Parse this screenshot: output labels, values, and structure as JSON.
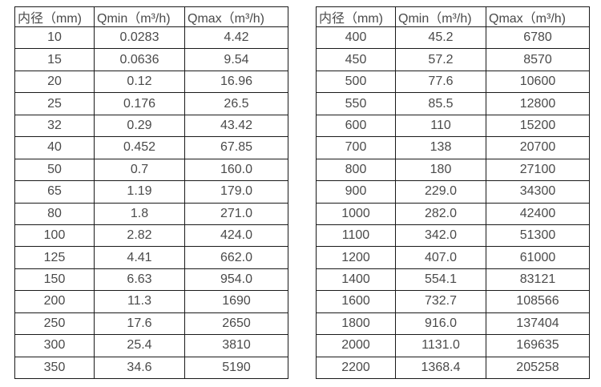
{
  "colors": {
    "background": "#ffffff",
    "border": "#1a1a1a",
    "text": "#4a4a4a"
  },
  "tables": [
    {
      "name": "flow-range-table-small-diameters",
      "headers": [
        "内径（mm)",
        "Qmin（m³/h)",
        "Qmax（m³/h)"
      ],
      "rows": [
        [
          "10",
          "0.0283",
          "4.42"
        ],
        [
          "15",
          "0.0636",
          "9.54"
        ],
        [
          "20",
          "0.12",
          "16.96"
        ],
        [
          "25",
          "0.176",
          "26.5"
        ],
        [
          "32",
          "0.29",
          "43.42"
        ],
        [
          "40",
          "0.452",
          "67.85"
        ],
        [
          "50",
          "0.7",
          "160.0"
        ],
        [
          "65",
          "1.19",
          "179.0"
        ],
        [
          "80",
          "1.8",
          "271.0"
        ],
        [
          "100",
          "2.82",
          "424.0"
        ],
        [
          "125",
          "4.41",
          "662.0"
        ],
        [
          "150",
          "6.63",
          "954.0"
        ],
        [
          "200",
          "11.3",
          "1690"
        ],
        [
          "250",
          "17.6",
          "2650"
        ],
        [
          "300",
          "25.4",
          "3810"
        ],
        [
          "350",
          "34.6",
          "5190"
        ]
      ]
    },
    {
      "name": "flow-range-table-large-diameters",
      "headers": [
        "内径（mm)",
        "Qmin（m³/h)",
        "Qmax（m³/h)"
      ],
      "rows": [
        [
          "400",
          "45.2",
          "6780"
        ],
        [
          "450",
          "57.2",
          "8570"
        ],
        [
          "500",
          "77.6",
          "10600"
        ],
        [
          "550",
          "85.5",
          "12800"
        ],
        [
          "600",
          "110",
          "15200"
        ],
        [
          "700",
          "138",
          "20700"
        ],
        [
          "800",
          "180",
          "27100"
        ],
        [
          "900",
          "229.0",
          "34300"
        ],
        [
          "1000",
          "282.0",
          "42400"
        ],
        [
          "1100",
          "342.0",
          "51300"
        ],
        [
          "1200",
          "407.0",
          "61000"
        ],
        [
          "1400",
          "554.1",
          "83121"
        ],
        [
          "1600",
          "732.7",
          "108566"
        ],
        [
          "1800",
          "916.0",
          "137404"
        ],
        [
          "2000",
          "1131.0",
          "169635"
        ],
        [
          "2200",
          "1368.4",
          "205258"
        ]
      ]
    }
  ]
}
